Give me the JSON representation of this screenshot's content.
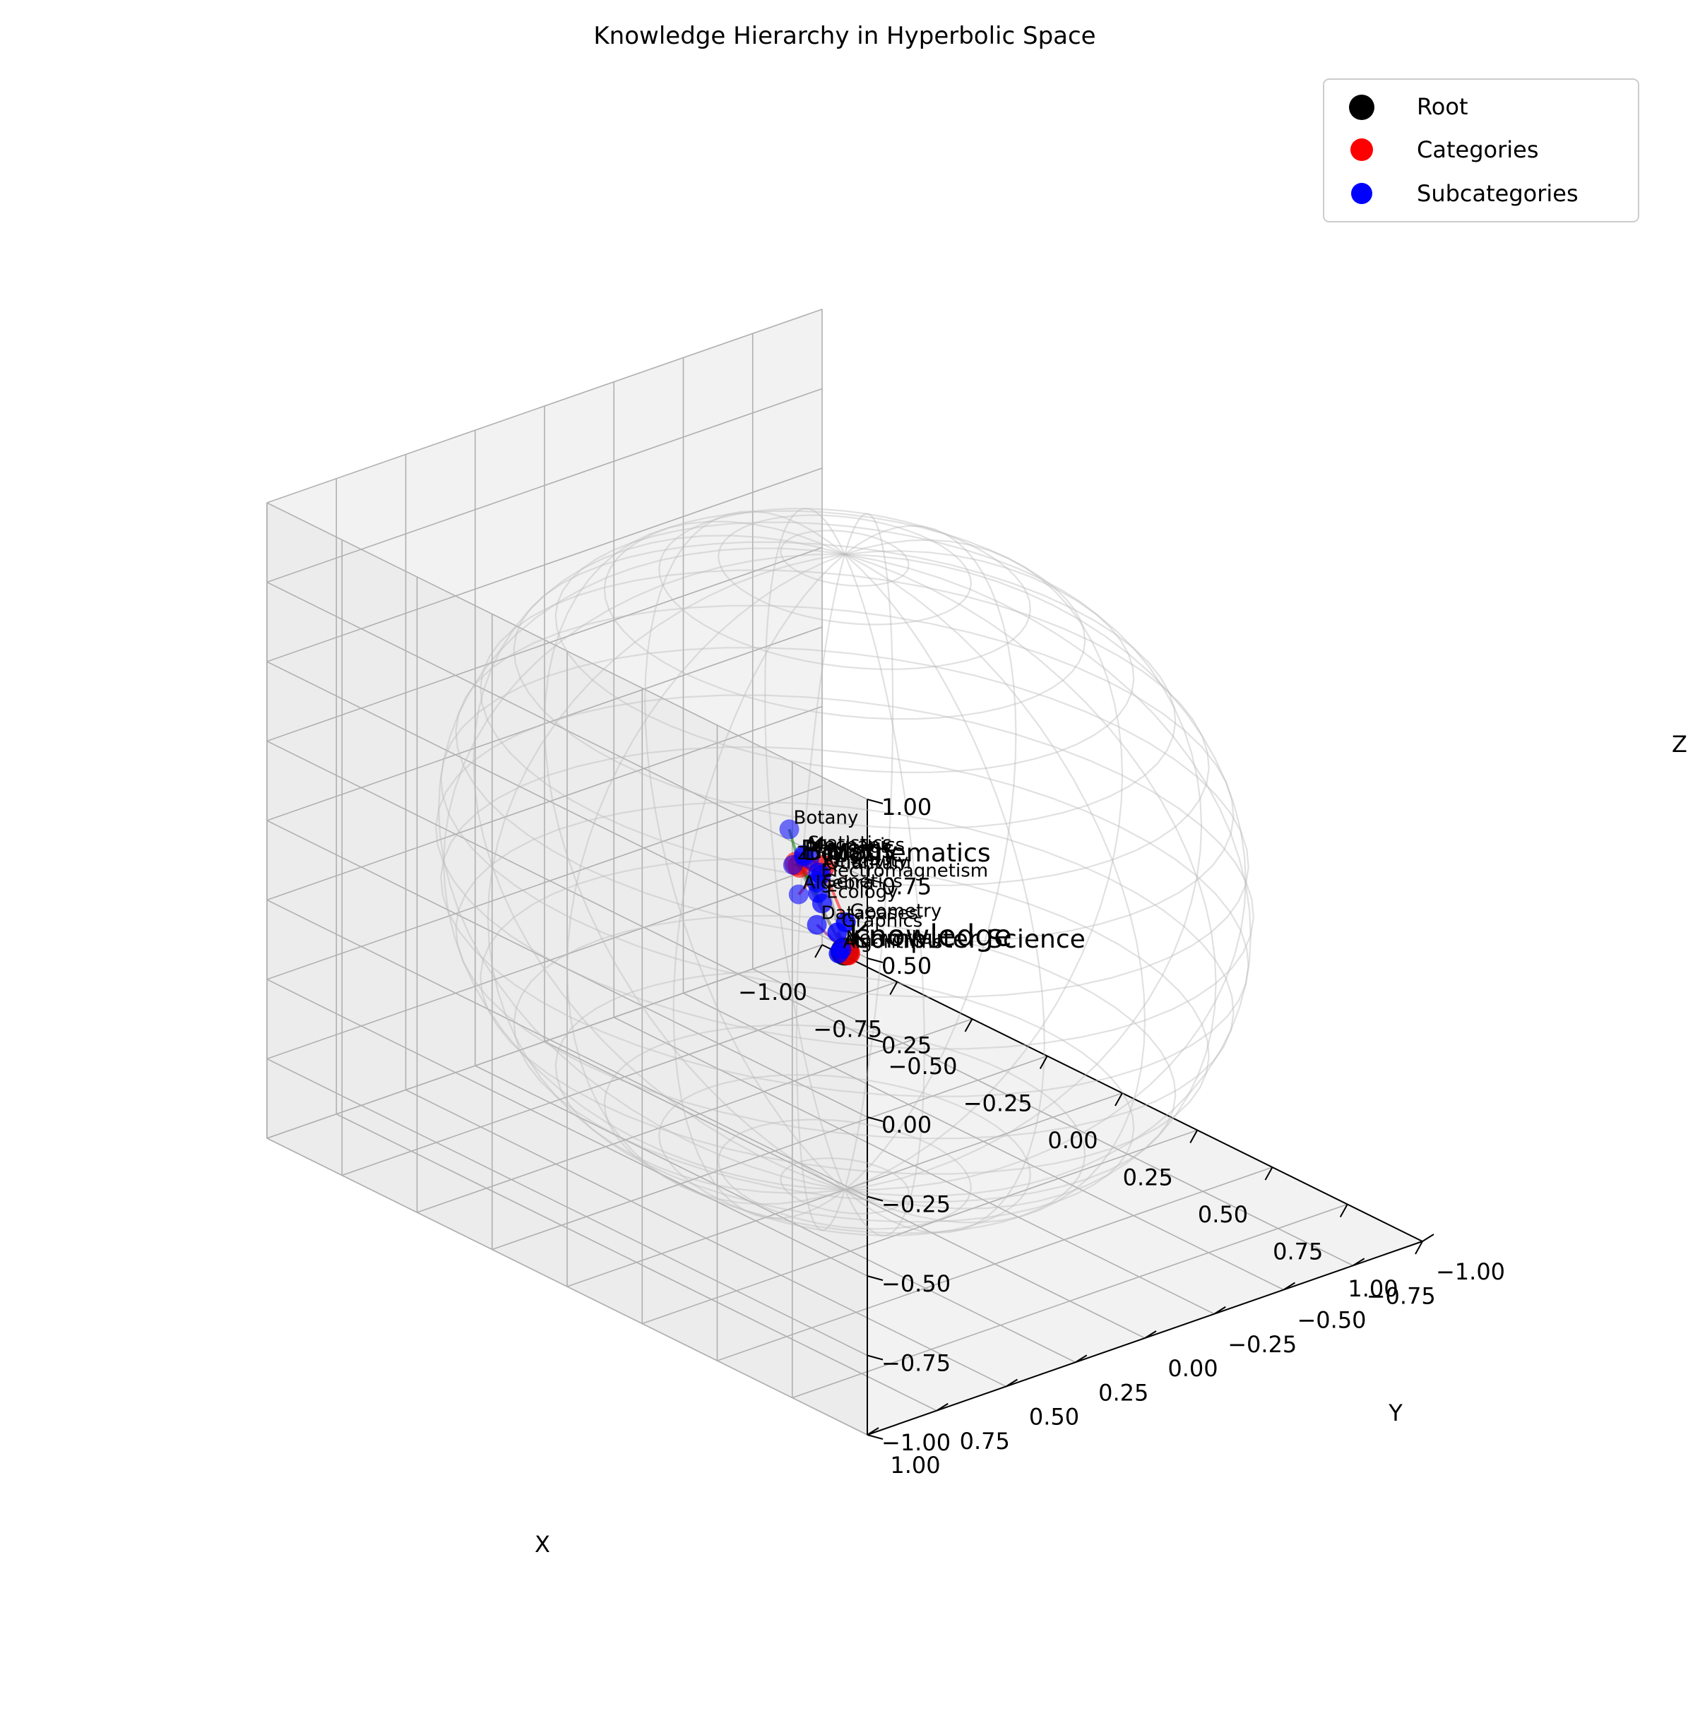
{
  "chart_data": {
    "type": "scatter",
    "projection": "3d",
    "title": "Knowledge Hierarchy in Hyperbolic Space",
    "xlabel": "X",
    "ylabel": "Y",
    "zlabel": "Z",
    "xlim": [
      -1,
      1
    ],
    "ylim": [
      -1,
      1
    ],
    "zlim": [
      -1,
      1
    ],
    "x_ticks": [
      "−1.00",
      "−0.75",
      "−0.50",
      "−0.25",
      "0.00",
      "0.25",
      "0.50",
      "0.75",
      "1.00"
    ],
    "y_ticks": [
      "−1.00",
      "−0.75",
      "−0.50",
      "−0.25",
      "0.00",
      "0.25",
      "0.50",
      "0.75",
      "1.00"
    ],
    "z_ticks": [
      "−1.00",
      "−0.75",
      "−0.50",
      "−0.25",
      "0.00",
      "0.25",
      "0.50",
      "0.75",
      "1.00"
    ],
    "grid": true,
    "legend_position": "top-right",
    "sphere": {
      "radius": 1.0,
      "color": "#bdbdbd"
    },
    "series": [
      {
        "name": "Root",
        "color": "#000000",
        "points": [
          {
            "label": "Knowledge",
            "x": 0.0,
            "y": 0.0,
            "z": -0.25
          }
        ]
      },
      {
        "name": "Categories",
        "color": "#ff0000",
        "points": [
          {
            "label": "Computer Science",
            "x": 0.15,
            "y": 0.15,
            "z": -0.14
          },
          {
            "label": "Mathematics",
            "x": 0.0,
            "y": 0.08,
            "z": 0.04
          },
          {
            "label": "Physics",
            "x": -0.05,
            "y": 0.12,
            "z": 0.04
          },
          {
            "label": "Biology",
            "x": -0.15,
            "y": 0.0,
            "z": -0.05
          }
        ]
      },
      {
        "name": "Subcategories",
        "color": "#0000ff",
        "points": [
          {
            "label": "Algorithms",
            "x": 0.1,
            "y": 0.13,
            "z": -0.17
          },
          {
            "label": "Networks",
            "x": 0.1,
            "y": 0.12,
            "z": -0.16
          },
          {
            "label": "Databases",
            "x": 0.12,
            "y": 0.23,
            "z": -0.04
          },
          {
            "label": "Graphics",
            "x": 0.04,
            "y": 0.07,
            "z": -0.15
          },
          {
            "label": "Geometry",
            "x": 0.05,
            "y": 0.05,
            "z": -0.12
          },
          {
            "label": "Algebra",
            "x": 0.05,
            "y": 0.22,
            "z": 0.02
          },
          {
            "label": "Calculus",
            "x": -0.09,
            "y": 0.03,
            "z": 0.01
          },
          {
            "label": "Statistics",
            "x": -0.1,
            "y": 0.04,
            "z": 0.02
          },
          {
            "label": "Quantum",
            "x": -0.06,
            "y": 0.02,
            "z": -0.03
          },
          {
            "label": "Relativity",
            "x": -0.06,
            "y": 0.03,
            "z": -0.02
          },
          {
            "label": "Mechanics",
            "x": -0.08,
            "y": 0.06,
            "z": 0.03
          },
          {
            "label": "Electromagnetism",
            "x": -0.01,
            "y": 0.09,
            "z": -0.01
          },
          {
            "label": "Ecology",
            "x": -0.02,
            "y": 0.06,
            "z": -0.09
          },
          {
            "label": "Genetics",
            "x": -0.08,
            "y": 0.01,
            "z": -0.1
          },
          {
            "label": "Zoology",
            "x": -0.2,
            "y": -0.03,
            "z": -0.08
          },
          {
            "label": "Botany",
            "x": -0.12,
            "y": 0.07,
            "z": 0.1
          }
        ]
      }
    ],
    "edges": [
      {
        "from": "Knowledge",
        "to": "Computer Science",
        "color": "#808080"
      },
      {
        "from": "Knowledge",
        "to": "Mathematics",
        "color": "#808080"
      },
      {
        "from": "Knowledge",
        "to": "Physics",
        "color": "#808080"
      },
      {
        "from": "Knowledge",
        "to": "Biology",
        "color": "#808080"
      },
      {
        "from": "Computer Science",
        "to": "Algorithms",
        "color": "#800080"
      },
      {
        "from": "Computer Science",
        "to": "Networks",
        "color": "#800080"
      },
      {
        "from": "Computer Science",
        "to": "Databases",
        "color": "#800080"
      },
      {
        "from": "Computer Science",
        "to": "Graphics",
        "color": "#800080"
      },
      {
        "from": "Mathematics",
        "to": "Algebra",
        "color": "#ff0000"
      },
      {
        "from": "Mathematics",
        "to": "Calculus",
        "color": "#ff0000"
      },
      {
        "from": "Mathematics",
        "to": "Geometry",
        "color": "#ff0000"
      },
      {
        "from": "Mathematics",
        "to": "Statistics",
        "color": "#ff0000"
      },
      {
        "from": "Physics",
        "to": "Quantum",
        "color": "#0000ff"
      },
      {
        "from": "Physics",
        "to": "Relativity",
        "color": "#0000ff"
      },
      {
        "from": "Physics",
        "to": "Mechanics",
        "color": "#0000ff"
      },
      {
        "from": "Physics",
        "to": "Electromagnetism",
        "color": "#0000ff"
      },
      {
        "from": "Biology",
        "to": "Genetics",
        "color": "#008000"
      },
      {
        "from": "Biology",
        "to": "Ecology",
        "color": "#008000"
      },
      {
        "from": "Biology",
        "to": "Zoology",
        "color": "#008000"
      },
      {
        "from": "Biology",
        "to": "Botany",
        "color": "#008000"
      }
    ]
  }
}
